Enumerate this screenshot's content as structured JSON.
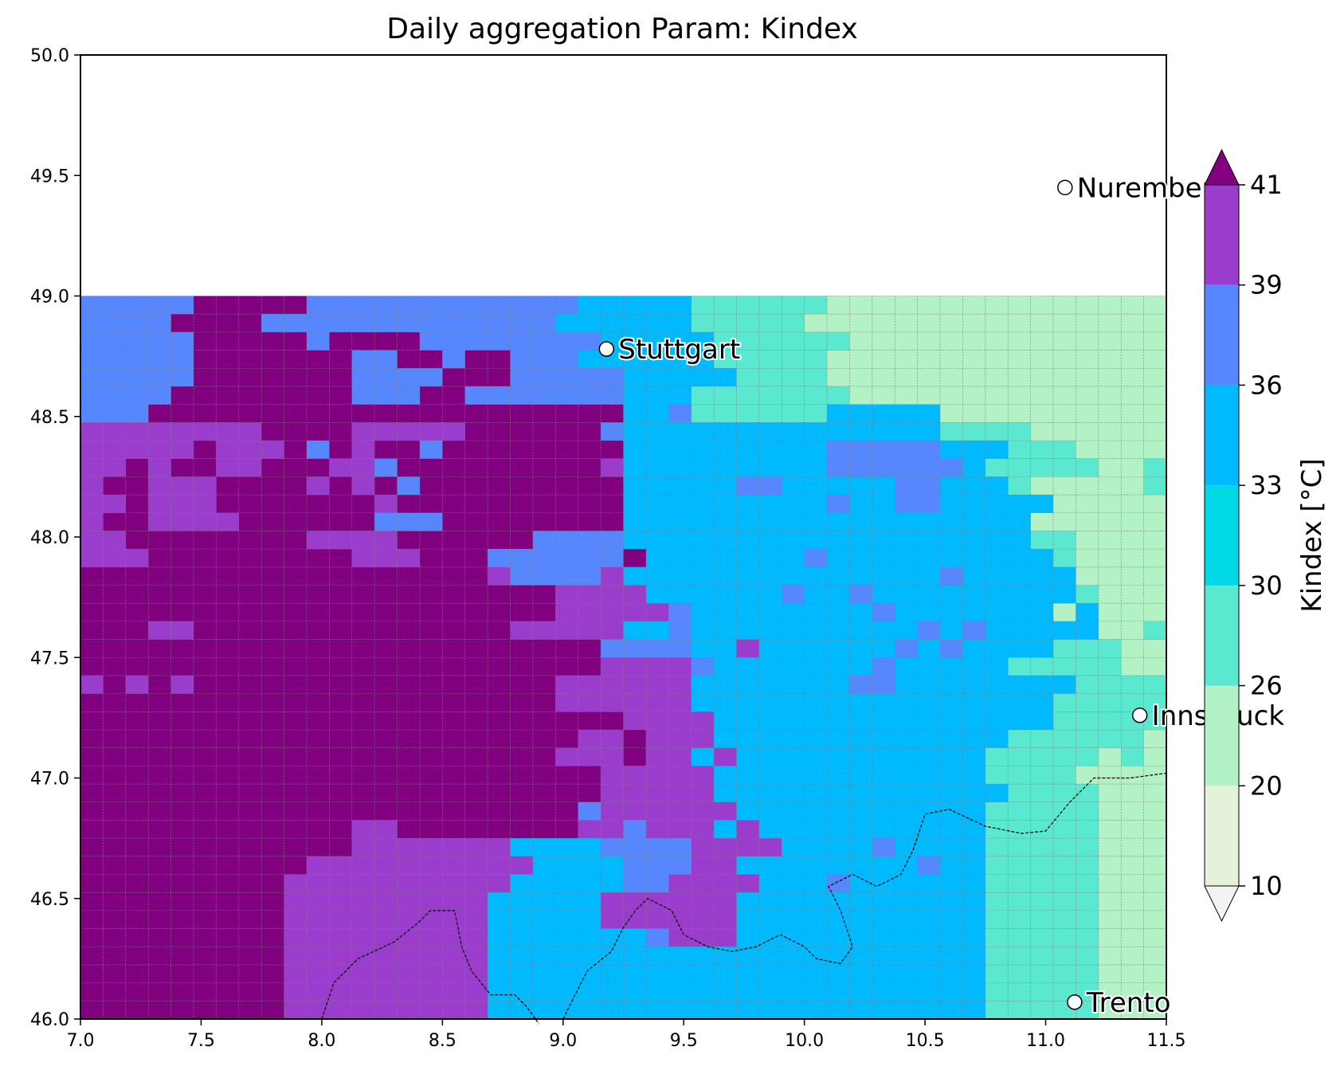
{
  "title": "Daily aggregation Param: Kindex",
  "map": {
    "lon_range": [
      7.0,
      11.5
    ],
    "lat_range": [
      46.0,
      50.0
    ],
    "data_lat_top": 49.0,
    "cell_deg": 0.1,
    "x_ticks": [
      "7.0",
      "7.5",
      "8.0",
      "8.5",
      "9.0",
      "9.5",
      "10.0",
      "10.5",
      "11.0",
      "11.5"
    ],
    "y_ticks": [
      "46.0",
      "46.5",
      "47.0",
      "47.5",
      "48.0",
      "48.5",
      "49.0",
      "49.5",
      "50.0"
    ],
    "gridlines": true,
    "country_borders": "dashed"
  },
  "chart_data": {
    "type": "heatmap",
    "x_unit": "longitude (°E)",
    "y_unit": "latitude (°N)",
    "rows_north_to_south": [
      "444449999944444444444433333222222111110000000000",
      "444499994444444444444333333222221111100000000000",
      "444449999949999444444443333322222211111000000000",
      "444449999999449949944433333322222111111100000000",
      "444449999999444499944444333332222111111000000000",
      "444499999999444994444444333222222211111000000000",
      "444999999999999999999999334222222333331110001000",
      "555555559999555559999994333333333333332222100000",
      "555559555949599499999999333333333444443332221001",
      "559599559995549999999995333333333444444322222102",
      "599555999959594999999999333334433333443332111102",
      "559555999999959999999999333333333433443333310000",
      "599555599999944499999999333333333333333333100000",
      "559999999955559999994444333333333333333333221000",
      "555999999999555999444444933333334333333333321000",
      "999999999999999999544445333333333333334333331110",
      "999999999999999999999555533333343343333333332110",
      "999999999999999999999555554333333334333333313111",
      "999559999999999999955555334333333333343433333112",
      "999999999999999999999994444335333333434333322211",
      "999999999999999999999995555433333334333332222211",
      "595959999999999999999555555333333344333333332222",
      "999999999999999999999555555333333333333333322222",
      "999999999999999999999999555533333333333333322222",
      "999999999999999999999955955533333333333332222221",
      "999999999999999999999555955353333333333322222121",
      "999999999999999999999995555533333333333322221111",
      "999999999999999999999995555533333333333332222111",
      "999999999999999999999945555553333333333322222111",
      "999999999999559999999955455535333333333322222111",
      "999999999999555555533334444555533334333322222111",
      "999999999955555555553333444553333333343322222111",
      "999999999555555555533333445555333433333322222111",
      "999999999555555555333335555553333333333322222111",
      "999999999555555555333335555553333333333322222111",
      "999999999555555555333333345553333333333322222111",
      "999999999555555555333333333333333333333322222111",
      "999999999555555555333333333333333333333322222111",
      "999999999555555555333333333333333333333322222111",
      "999999999555555555333333333333333333333322222111"
    ],
    "_grid_note_removed": ""
  },
  "colorbar": {
    "label": "Kindex  [°C]",
    "ticks": [
      "10",
      "20",
      "26",
      "30",
      "33",
      "36",
      "39",
      "41"
    ],
    "bins": [
      {
        "from": 10,
        "to": 20,
        "color": "#e3f2d8"
      },
      {
        "from": 20,
        "to": 26,
        "color": "#b2f2c4"
      },
      {
        "from": 26,
        "to": 30,
        "color": "#5ae8d0"
      },
      {
        "from": 30,
        "to": 33,
        "color": "#00d8e6"
      },
      {
        "from": 33,
        "to": 36,
        "color": "#00b9ff"
      },
      {
        "from": 36,
        "to": 39,
        "color": "#5787ff"
      },
      {
        "from": 39,
        "to": 41,
        "color": "#9a3ccc"
      }
    ],
    "under_color": "#f2f2f2",
    "over_color": "#800080"
  },
  "cities": [
    {
      "name": "Stuttgart",
      "lon": 9.18,
      "lat": 48.78
    },
    {
      "name": "Nuremberg",
      "lon": 11.08,
      "lat": 49.45
    },
    {
      "name": "Innsbruck",
      "lon": 11.39,
      "lat": 47.26
    },
    {
      "name": "Trento",
      "lon": 11.12,
      "lat": 46.07
    }
  ]
}
